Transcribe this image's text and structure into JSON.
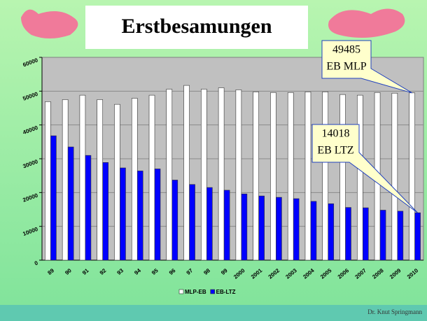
{
  "chart_data": {
    "type": "bar",
    "title": "Erstbesamungen",
    "categories": [
      "89",
      "90",
      "91",
      "92",
      "93",
      "94",
      "95",
      "96",
      "97",
      "98",
      "99",
      "2000",
      "2001",
      "2002",
      "2003",
      "2004",
      "2005",
      "2006",
      "2007",
      "2008",
      "2009",
      "2010"
    ],
    "series": [
      {
        "name": "MLP-EB",
        "color": "#ffffff",
        "values": [
          46900,
          47500,
          48800,
          47500,
          46100,
          47900,
          48800,
          50600,
          51700,
          50600,
          51000,
          50400,
          49800,
          49600,
          49600,
          49800,
          49800,
          49000,
          48800,
          49600,
          49400,
          49485
        ]
      },
      {
        "name": "EB-LTZ",
        "color": "#0000ff",
        "values": [
          36800,
          33500,
          31000,
          28900,
          27300,
          26400,
          27000,
          23700,
          22400,
          21500,
          20700,
          19600,
          19000,
          18600,
          18200,
          17400,
          16700,
          15600,
          15500,
          14800,
          14500,
          14018
        ]
      }
    ],
    "ylim": [
      0,
      60000
    ],
    "yticks": [
      0,
      10000,
      20000,
      30000,
      40000,
      50000,
      60000
    ],
    "grid": true,
    "annotations": [
      {
        "lines": [
          "49485",
          "EB MLP"
        ],
        "series": 0,
        "point": 21
      },
      {
        "lines": [
          "14018",
          "EB LTZ"
        ],
        "series": 1,
        "point": 21
      }
    ],
    "footer": "Dr. Knut Springmann"
  }
}
